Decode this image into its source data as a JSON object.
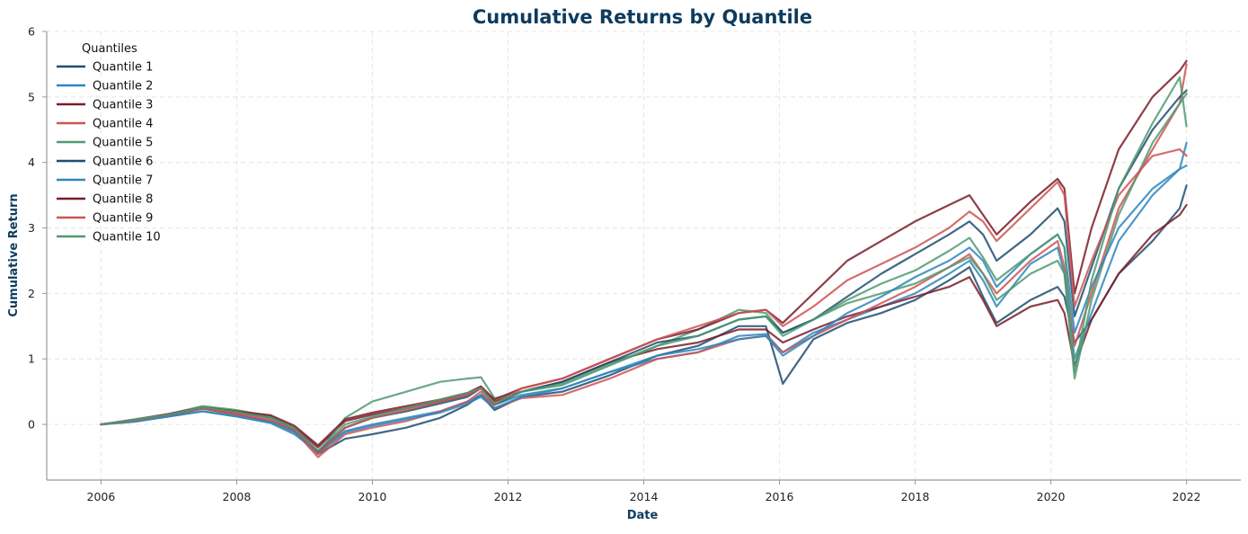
{
  "chart_data": {
    "type": "line",
    "title": "Cumulative Returns by Quantile",
    "xlabel": "Date",
    "ylabel": "Cumulative Return",
    "xlim": [
      2005.2,
      2022.8
    ],
    "ylim": [
      -0.85,
      6.0
    ],
    "x_ticks": [
      2006,
      2008,
      2010,
      2012,
      2014,
      2016,
      2018,
      2020,
      2022
    ],
    "y_ticks": [
      0,
      1,
      2,
      3,
      4,
      5,
      6
    ],
    "grid": true,
    "legend": {
      "title": "Quantiles",
      "placement": "top-left"
    },
    "x": [
      2006.0,
      2006.5,
      2007.0,
      2007.5,
      2008.0,
      2008.5,
      2008.85,
      2009.2,
      2009.6,
      2010.0,
      2010.5,
      2011.0,
      2011.4,
      2011.6,
      2011.8,
      2012.2,
      2012.8,
      2013.5,
      2014.2,
      2014.8,
      2015.4,
      2015.8,
      2016.05,
      2016.5,
      2017.0,
      2017.5,
      2018.0,
      2018.5,
      2018.8,
      2019.0,
      2019.2,
      2019.7,
      2020.1,
      2020.2,
      2020.35,
      2020.6,
      2021.0,
      2021.5,
      2021.9,
      2022.0
    ],
    "series": [
      {
        "name": "Quantile 1",
        "color": "#1f4e6e",
        "values": [
          0.0,
          0.05,
          0.14,
          0.24,
          0.15,
          0.05,
          -0.1,
          -0.45,
          -0.22,
          -0.15,
          -0.05,
          0.1,
          0.3,
          0.45,
          0.22,
          0.42,
          0.5,
          0.75,
          1.05,
          1.2,
          1.5,
          1.5,
          0.62,
          1.3,
          1.55,
          1.7,
          1.9,
          2.2,
          2.4,
          1.95,
          1.55,
          1.9,
          2.1,
          1.95,
          1.25,
          1.6,
          2.3,
          2.8,
          3.3,
          3.65
        ]
      },
      {
        "name": "Quantile 2",
        "color": "#2f86bd",
        "values": [
          0.0,
          0.05,
          0.12,
          0.2,
          0.12,
          0.02,
          -0.15,
          -0.42,
          -0.1,
          0.0,
          0.1,
          0.2,
          0.35,
          0.45,
          0.3,
          0.45,
          0.55,
          0.8,
          1.0,
          1.1,
          1.35,
          1.38,
          1.1,
          1.4,
          1.6,
          1.8,
          2.0,
          2.3,
          2.5,
          2.2,
          1.8,
          2.45,
          2.7,
          2.3,
          1.0,
          1.7,
          2.8,
          3.5,
          3.9,
          4.3
        ]
      },
      {
        "name": "Quantile 3",
        "color": "#7a1c2a",
        "values": [
          0.0,
          0.07,
          0.15,
          0.25,
          0.18,
          0.12,
          -0.05,
          -0.35,
          0.05,
          0.15,
          0.25,
          0.35,
          0.45,
          0.55,
          0.35,
          0.5,
          0.65,
          0.95,
          1.15,
          1.25,
          1.45,
          1.45,
          1.25,
          1.45,
          1.65,
          1.8,
          1.95,
          2.1,
          2.25,
          1.9,
          1.5,
          1.8,
          1.9,
          1.7,
          0.9,
          1.6,
          2.3,
          2.9,
          3.2,
          3.35
        ]
      },
      {
        "name": "Quantile 4",
        "color": "#cc5555",
        "values": [
          0.0,
          0.05,
          0.14,
          0.24,
          0.15,
          0.05,
          -0.1,
          -0.5,
          -0.15,
          -0.05,
          0.05,
          0.2,
          0.35,
          0.5,
          0.25,
          0.4,
          0.45,
          0.7,
          1.0,
          1.1,
          1.3,
          1.35,
          1.1,
          1.35,
          1.6,
          1.85,
          2.1,
          2.4,
          2.6,
          2.3,
          2.0,
          2.5,
          2.8,
          2.4,
          1.2,
          2.0,
          3.3,
          4.2,
          4.9,
          5.5
        ]
      },
      {
        "name": "Quantile 5",
        "color": "#4f9a72",
        "values": [
          0.0,
          0.08,
          0.16,
          0.28,
          0.22,
          0.12,
          -0.05,
          -0.45,
          0.1,
          0.35,
          0.5,
          0.65,
          0.7,
          0.72,
          0.4,
          0.5,
          0.6,
          0.9,
          1.2,
          1.45,
          1.75,
          1.7,
          1.4,
          1.6,
          1.85,
          2.0,
          2.15,
          2.4,
          2.55,
          2.3,
          1.9,
          2.3,
          2.5,
          2.3,
          0.7,
          1.9,
          3.2,
          4.3,
          4.9,
          5.05
        ]
      },
      {
        "name": "Quantile 6",
        "color": "#1f4e6e",
        "values": [
          0.0,
          0.06,
          0.15,
          0.25,
          0.18,
          0.1,
          -0.08,
          -0.42,
          -0.05,
          0.1,
          0.2,
          0.32,
          0.42,
          0.55,
          0.3,
          0.5,
          0.65,
          0.95,
          1.25,
          1.35,
          1.6,
          1.65,
          1.4,
          1.6,
          1.95,
          2.3,
          2.6,
          2.9,
          3.1,
          2.9,
          2.5,
          2.9,
          3.3,
          3.1,
          1.65,
          2.4,
          3.6,
          4.5,
          5.0,
          5.1
        ]
      },
      {
        "name": "Quantile 7",
        "color": "#2f86bd",
        "values": [
          0.0,
          0.04,
          0.12,
          0.2,
          0.12,
          0.03,
          -0.12,
          -0.45,
          -0.12,
          -0.02,
          0.08,
          0.18,
          0.32,
          0.42,
          0.25,
          0.42,
          0.55,
          0.8,
          1.05,
          1.15,
          1.3,
          1.35,
          1.05,
          1.35,
          1.7,
          1.95,
          2.25,
          2.5,
          2.7,
          2.5,
          2.1,
          2.6,
          2.9,
          2.7,
          1.4,
          2.1,
          3.0,
          3.6,
          3.9,
          3.95
        ]
      },
      {
        "name": "Quantile 8",
        "color": "#7a1c2a",
        "values": [
          0.0,
          0.07,
          0.16,
          0.26,
          0.2,
          0.14,
          -0.02,
          -0.32,
          0.08,
          0.18,
          0.28,
          0.38,
          0.48,
          0.58,
          0.38,
          0.55,
          0.7,
          1.0,
          1.3,
          1.45,
          1.7,
          1.75,
          1.55,
          2.0,
          2.5,
          2.8,
          3.1,
          3.35,
          3.5,
          3.2,
          2.9,
          3.4,
          3.75,
          3.6,
          2.0,
          3.0,
          4.2,
          5.0,
          5.4,
          5.55
        ]
      },
      {
        "name": "Quantile 9",
        "color": "#cc5555",
        "values": [
          0.0,
          0.06,
          0.15,
          0.25,
          0.17,
          0.08,
          -0.08,
          -0.45,
          -0.05,
          0.1,
          0.22,
          0.35,
          0.45,
          0.55,
          0.3,
          0.55,
          0.7,
          1.0,
          1.3,
          1.5,
          1.7,
          1.75,
          1.5,
          1.8,
          2.2,
          2.45,
          2.7,
          3.0,
          3.25,
          3.1,
          2.8,
          3.3,
          3.7,
          3.5,
          1.8,
          2.5,
          3.5,
          4.1,
          4.2,
          4.1
        ]
      },
      {
        "name": "Quantile 10",
        "color": "#4f9a72",
        "values": [
          0.0,
          0.07,
          0.15,
          0.26,
          0.19,
          0.1,
          -0.06,
          -0.4,
          0.0,
          0.12,
          0.25,
          0.38,
          0.48,
          0.55,
          0.32,
          0.5,
          0.62,
          0.92,
          1.2,
          1.35,
          1.6,
          1.65,
          1.35,
          1.6,
          1.9,
          2.15,
          2.35,
          2.65,
          2.85,
          2.55,
          2.2,
          2.6,
          2.9,
          2.7,
          0.8,
          2.2,
          3.6,
          4.6,
          5.3,
          4.55
        ]
      }
    ]
  }
}
